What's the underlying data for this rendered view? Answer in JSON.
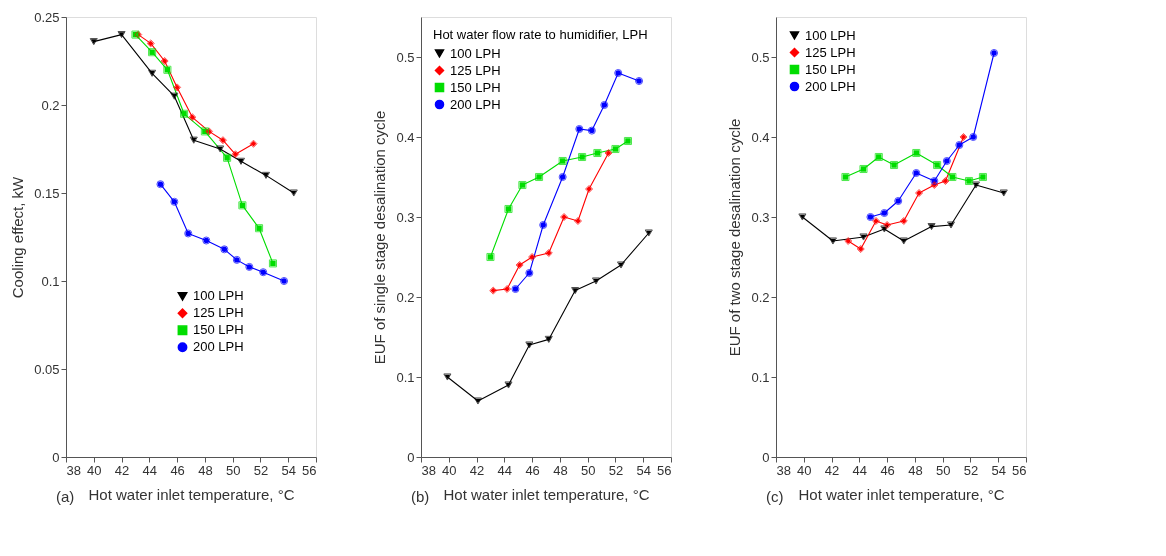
{
  "chart_data": [
    {
      "type": "line",
      "ylabel": "Cooling effect, kW",
      "xlabel": "Hot water inlet temperature, °C",
      "annotations": [
        "(a)"
      ],
      "xlim": [
        38,
        56
      ],
      "xticks": [
        38,
        40,
        42,
        44,
        46,
        48,
        50,
        52,
        54,
        56
      ],
      "ylim": [
        0,
        0.25
      ],
      "yticks": [
        0,
        0.05,
        0.1,
        0.15,
        0.2,
        0.25
      ],
      "grid": false,
      "legend": "bottom right",
      "series": [
        {
          "name": "100 LPH",
          "color": "#000000",
          "marker": "triangle",
          "x": [
            40,
            42,
            44.2,
            45.8,
            47.2,
            49.1,
            50.6,
            52.4,
            54.4
          ],
          "values": [
            0.236,
            0.24,
            0.218,
            0.205,
            0.18,
            0.175,
            0.168,
            0.16,
            0.15
          ]
        },
        {
          "name": "125 LPH",
          "color": "#ff0000",
          "marker": "diamond",
          "x": [
            43.2,
            44.1,
            45.1,
            46,
            47.1,
            48.3,
            49.3,
            50.2,
            51.5
          ],
          "values": [
            0.24,
            0.235,
            0.225,
            0.21,
            0.193,
            0.185,
            0.18,
            0.172,
            0.178
          ]
        },
        {
          "name": "150 LPH",
          "color": "#00dd00",
          "marker": "square",
          "x": [
            43,
            44.2,
            45.3,
            46.5,
            48,
            49.6,
            50.7,
            51.9,
            52.9
          ],
          "values": [
            0.24,
            0.23,
            0.22,
            0.195,
            0.185,
            0.17,
            0.143,
            0.13,
            0.11
          ]
        },
        {
          "name": "200 LPH",
          "color": "#0000ff",
          "marker": "circle",
          "x": [
            44.8,
            45.8,
            46.8,
            48.1,
            49.4,
            50.3,
            51.2,
            52.2,
            53.7
          ],
          "values": [
            0.155,
            0.145,
            0.127,
            0.123,
            0.118,
            0.112,
            0.108,
            0.105,
            0.1
          ]
        }
      ]
    },
    {
      "type": "line",
      "ylabel": "EUF of single stage desalination cycle",
      "xlabel": "Hot water inlet temperature, °C",
      "legend_title": "Hot water flow rate to humidifier, LPH",
      "annotations": [
        "(b)"
      ],
      "xlim": [
        38,
        56
      ],
      "xticks": [
        38,
        40,
        42,
        44,
        46,
        48,
        50,
        52,
        54,
        56
      ],
      "ylim": [
        0,
        0.55
      ],
      "yticks": [
        0,
        0.1,
        0.2,
        0.3,
        0.4,
        0.5
      ],
      "grid": false,
      "legend": "top left",
      "series": [
        {
          "name": "100 LPH",
          "color": "#000000",
          "marker": "triangle",
          "x": [
            39.9,
            42.1,
            44.3,
            45.8,
            47.2,
            49.1,
            50.6,
            52.4,
            54.4
          ],
          "values": [
            0.1,
            0.07,
            0.09,
            0.14,
            0.147,
            0.208,
            0.22,
            0.24,
            0.28
          ]
        },
        {
          "name": "125 LPH",
          "color": "#ff0000",
          "marker": "diamond",
          "x": [
            43.2,
            44.2,
            45.1,
            46,
            47.2,
            48.3,
            49.3,
            50.1,
            51.5
          ],
          "values": [
            0.208,
            0.21,
            0.24,
            0.25,
            0.255,
            0.3,
            0.295,
            0.335,
            0.38
          ]
        },
        {
          "name": "150 LPH",
          "color": "#00dd00",
          "marker": "square",
          "x": [
            43,
            44.3,
            45.3,
            46.5,
            48.2,
            49.6,
            50.7,
            52,
            52.9
          ],
          "values": [
            0.25,
            0.31,
            0.34,
            0.35,
            0.37,
            0.375,
            0.38,
            0.385,
            0.395
          ]
        },
        {
          "name": "200 LPH",
          "color": "#0000ff",
          "marker": "circle",
          "x": [
            44.8,
            45.8,
            46.8,
            48.2,
            49.4,
            50.3,
            51.2,
            52.2,
            53.7
          ],
          "values": [
            0.21,
            0.23,
            0.29,
            0.35,
            0.41,
            0.408,
            0.44,
            0.48,
            0.47
          ]
        }
      ]
    },
    {
      "type": "line",
      "ylabel": "EUF of two stage desalination cycle",
      "xlabel": "Hot water inlet temperature, °C",
      "annotations": [
        "(c)"
      ],
      "xlim": [
        38,
        56
      ],
      "xticks": [
        38,
        40,
        42,
        44,
        46,
        48,
        50,
        52,
        54,
        56
      ],
      "ylim": [
        0,
        0.55
      ],
      "yticks": [
        0,
        0.1,
        0.2,
        0.3,
        0.4,
        0.5
      ],
      "grid": false,
      "legend": "top left",
      "series": [
        {
          "name": "100 LPH",
          "color": "#000000",
          "marker": "triangle",
          "x": [
            39.9,
            42.1,
            44.3,
            45.8,
            47.2,
            49.2,
            50.6,
            52.4,
            54.4
          ],
          "values": [
            0.3,
            0.27,
            0.275,
            0.285,
            0.27,
            0.288,
            0.29,
            0.34,
            0.33
          ]
        },
        {
          "name": "125 LPH",
          "color": "#ff0000",
          "marker": "diamond",
          "x": [
            43.2,
            44.1,
            45.2,
            46,
            47.2,
            48.3,
            49.4,
            50.2,
            51.5
          ],
          "values": [
            0.27,
            0.26,
            0.295,
            0.29,
            0.295,
            0.33,
            0.34,
            0.345,
            0.4
          ]
        },
        {
          "name": "150 LPH",
          "color": "#00dd00",
          "marker": "square",
          "x": [
            43,
            44.3,
            45.4,
            46.5,
            48.1,
            49.6,
            50.7,
            51.9,
            52.9
          ],
          "values": [
            0.35,
            0.36,
            0.375,
            0.365,
            0.38,
            0.365,
            0.35,
            0.345,
            0.35
          ]
        },
        {
          "name": "200 LPH",
          "color": "#0000ff",
          "marker": "circle",
          "x": [
            44.8,
            45.8,
            46.8,
            48.1,
            49.4,
            50.3,
            51.2,
            52.2,
            53.7
          ],
          "values": [
            0.3,
            0.305,
            0.32,
            0.355,
            0.345,
            0.37,
            0.39,
            0.4,
            0.505
          ]
        }
      ]
    }
  ]
}
